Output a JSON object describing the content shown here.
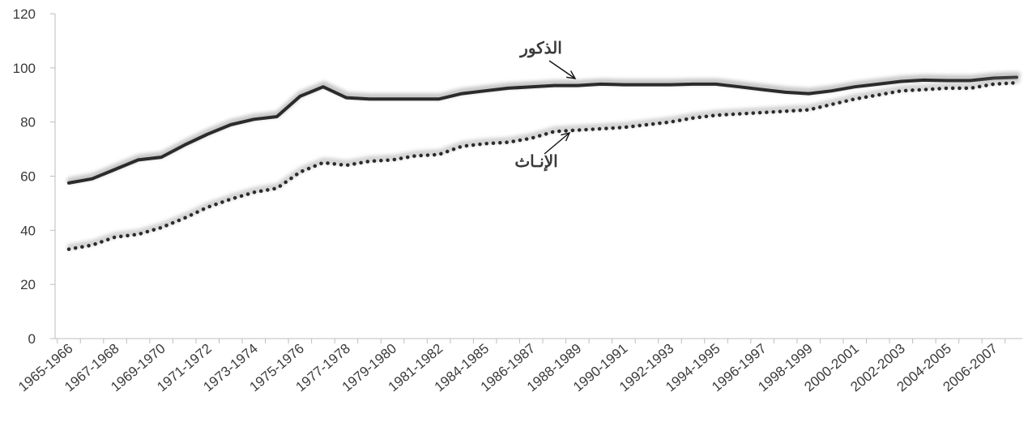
{
  "chart_data": {
    "type": "line",
    "ylim": [
      0,
      120
    ],
    "yticks": [
      "0",
      "20",
      "40",
      "60",
      "80",
      "100",
      "120"
    ],
    "grid": false,
    "x": [
      "1965-1966",
      "1966-1967",
      "1967-1968",
      "1968-1969",
      "1969-1970",
      "1970-1971",
      "1971-1972",
      "1972-1973",
      "1973-1974",
      "1974-1975",
      "1975-1976",
      "1976-1977",
      "1977-1978",
      "1978-1979",
      "1979-1980",
      "1980-1981",
      "1981-1982",
      "1983-1984",
      "1984-1985",
      "1985-1986",
      "1986-1987",
      "1987-1988",
      "1988-1989",
      "1989-1990",
      "1990-1991",
      "1991-1992",
      "1992-1993",
      "1993-1994",
      "1994-1995",
      "1995-1996",
      "1996-1997",
      "1997-1998",
      "1998-1999",
      "1999-2000",
      "2000-2001",
      "2001-2002",
      "2002-2003",
      "2003-2004",
      "2004-2005",
      "2005-2006",
      "2006-2007",
      "2007-2008"
    ],
    "xtick_labels": [
      "1965-1966",
      "1967-1968",
      "1969-1970",
      "1971-1972",
      "1973-1974",
      "1975-1976",
      "1977-1978",
      "1979-1980",
      "1981-1982",
      "1984-1985",
      "1986-1987",
      "1988-1989",
      "1990-1991",
      "1992-1993",
      "1994-1995",
      "1996-1997",
      "1998-1999",
      "2000-2001",
      "2002-2003",
      "2004-2005",
      "2006-2007"
    ],
    "series": [
      {
        "name": "الذكور",
        "style": "solid",
        "color": "#2b2b2b",
        "values": [
          57.5,
          59,
          62.5,
          66,
          67,
          71.5,
          75.5,
          79,
          81,
          82,
          89.5,
          93,
          89,
          88.5,
          88.5,
          88.5,
          88.5,
          90.5,
          91.5,
          92.5,
          93,
          93.5,
          93.5,
          94,
          93.8,
          93.8,
          93.8,
          94,
          94,
          93,
          92,
          91,
          90.5,
          91.5,
          93,
          94,
          95,
          95.5,
          95.3,
          95.3,
          96.2,
          96.5
        ]
      },
      {
        "name": "الإنـاث",
        "style": "dotted",
        "color": "#2b2b2b",
        "values": [
          33,
          34.5,
          37.5,
          38.5,
          41,
          44.5,
          48.5,
          51.5,
          54,
          55.5,
          61.5,
          65,
          64,
          65.5,
          66,
          67.5,
          68,
          71,
          72,
          72.5,
          74,
          76.5,
          77,
          77.5,
          78,
          79,
          80,
          81.5,
          82.5,
          83,
          83.5,
          84,
          84.5,
          86.5,
          88.5,
          90,
          91.5,
          92,
          92.5,
          92.5,
          94,
          94.5
        ]
      }
    ],
    "annotations": [
      {
        "text": "الذكور",
        "series": 0,
        "point": 22
      },
      {
        "text": "الإنـاث",
        "series": 1,
        "point": 22
      }
    ]
  }
}
